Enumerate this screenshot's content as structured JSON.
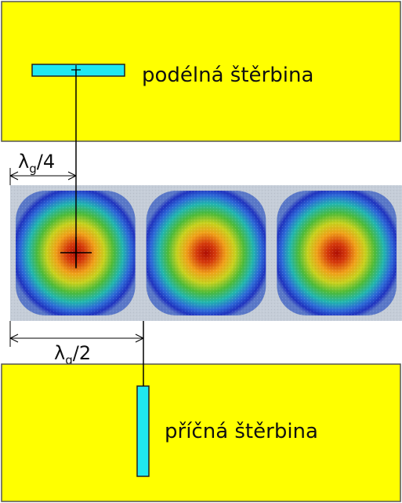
{
  "panels": {
    "top": {
      "label": "podélná štěrbina"
    },
    "bottom": {
      "label": "příčná štěrbina"
    }
  },
  "dimensions": {
    "quarter": {
      "symbol": "λ",
      "subscript": "g",
      "suffix": "/4"
    },
    "half": {
      "symbol": "λ",
      "subscript": "g",
      "suffix": "/2"
    }
  },
  "waveguide": {
    "cell_count": 3
  },
  "colors": {
    "plate": "#ffff00",
    "slot": "#1fe8f0",
    "field_low": "#1f3fd4",
    "field_high": "#c41a08"
  }
}
